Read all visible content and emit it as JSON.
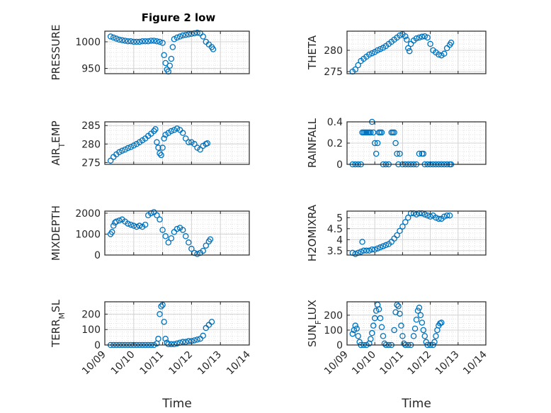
{
  "title": "Figure 2 low",
  "chart_data": [
    {
      "type": "scatter",
      "ylabel": "PRESSURE",
      "xlim": [
        0,
        5
      ],
      "ylim": [
        940,
        1020
      ],
      "yticks": [
        950,
        1000
      ],
      "xticklabels": [],
      "grid": true,
      "points": [
        [
          0.2,
          1010
        ],
        [
          0.3,
          1008
        ],
        [
          0.4,
          1006
        ],
        [
          0.5,
          1004
        ],
        [
          0.6,
          1003
        ],
        [
          0.7,
          1002
        ],
        [
          0.8,
          1001
        ],
        [
          0.9,
          1001
        ],
        [
          1.0,
          1000
        ],
        [
          1.1,
          1000
        ],
        [
          1.2,
          1000
        ],
        [
          1.3,
          1001
        ],
        [
          1.4,
          1001
        ],
        [
          1.5,
          1001
        ],
        [
          1.6,
          1002
        ],
        [
          1.7,
          1002
        ],
        [
          1.8,
          1001
        ],
        [
          1.9,
          1000
        ],
        [
          2.0,
          998
        ],
        [
          2.05,
          975
        ],
        [
          2.1,
          960
        ],
        [
          2.15,
          948
        ],
        [
          2.2,
          944
        ],
        [
          2.25,
          955
        ],
        [
          2.3,
          968
        ],
        [
          2.35,
          990
        ],
        [
          2.4,
          1005
        ],
        [
          2.5,
          1008
        ],
        [
          2.6,
          1010
        ],
        [
          2.7,
          1012
        ],
        [
          2.8,
          1013
        ],
        [
          2.9,
          1014
        ],
        [
          3.0,
          1015
        ],
        [
          3.1,
          1016
        ],
        [
          3.2,
          1017
        ],
        [
          3.3,
          1016
        ],
        [
          3.4,
          1010
        ],
        [
          3.5,
          1000
        ],
        [
          3.6,
          995
        ],
        [
          3.7,
          990
        ],
        [
          3.75,
          986
        ]
      ]
    },
    {
      "type": "scatter",
      "ylabel": "THETA",
      "xlim": [
        0,
        5
      ],
      "ylim": [
        274.5,
        284.5
      ],
      "yticks": [
        275,
        280
      ],
      "xticklabels": [],
      "grid": true,
      "points": [
        [
          0.2,
          275
        ],
        [
          0.3,
          275.5
        ],
        [
          0.4,
          276.5
        ],
        [
          0.5,
          277.5
        ],
        [
          0.6,
          278
        ],
        [
          0.7,
          278.5
        ],
        [
          0.8,
          279
        ],
        [
          0.9,
          279.3
        ],
        [
          1.0,
          279.6
        ],
        [
          1.1,
          280
        ],
        [
          1.2,
          280.3
        ],
        [
          1.3,
          280.6
        ],
        [
          1.4,
          281
        ],
        [
          1.5,
          281.5
        ],
        [
          1.6,
          282
        ],
        [
          1.7,
          282.5
        ],
        [
          1.8,
          283
        ],
        [
          1.9,
          283.5
        ],
        [
          2.0,
          283.8
        ],
        [
          2.1,
          283.3
        ],
        [
          2.15,
          282.5
        ],
        [
          2.2,
          280.5
        ],
        [
          2.25,
          279.8
        ],
        [
          2.3,
          281.5
        ],
        [
          2.4,
          282.3
        ],
        [
          2.5,
          282.8
        ],
        [
          2.6,
          283
        ],
        [
          2.7,
          283.2
        ],
        [
          2.8,
          283.3
        ],
        [
          2.9,
          283
        ],
        [
          3.0,
          281.5
        ],
        [
          3.1,
          280
        ],
        [
          3.2,
          279.5
        ],
        [
          3.3,
          279
        ],
        [
          3.4,
          278.8
        ],
        [
          3.5,
          279.2
        ],
        [
          3.6,
          280.5
        ],
        [
          3.7,
          281.3
        ],
        [
          3.75,
          281.8
        ]
      ]
    },
    {
      "type": "scatter",
      "ylabel": "AIR_TEMP",
      "xlim": [
        0,
        5
      ],
      "ylim": [
        274.5,
        286
      ],
      "yticks": [
        275,
        280,
        285
      ],
      "xticklabels": [],
      "grid": true,
      "points": [
        [
          0.2,
          275.5
        ],
        [
          0.3,
          276.5
        ],
        [
          0.4,
          277.2
        ],
        [
          0.5,
          277.8
        ],
        [
          0.6,
          278.2
        ],
        [
          0.7,
          278.5
        ],
        [
          0.8,
          278.9
        ],
        [
          0.9,
          279.2
        ],
        [
          1.0,
          279.6
        ],
        [
          1.1,
          280
        ],
        [
          1.2,
          280.5
        ],
        [
          1.3,
          281
        ],
        [
          1.4,
          281.5
        ],
        [
          1.5,
          282.2
        ],
        [
          1.6,
          282.8
        ],
        [
          1.7,
          283.5
        ],
        [
          1.75,
          284
        ],
        [
          1.8,
          280.5
        ],
        [
          1.85,
          279
        ],
        [
          1.9,
          277.5
        ],
        [
          1.95,
          277
        ],
        [
          2.0,
          279
        ],
        [
          2.05,
          281.5
        ],
        [
          2.1,
          282.5
        ],
        [
          2.2,
          283
        ],
        [
          2.3,
          283.5
        ],
        [
          2.4,
          283.8
        ],
        [
          2.5,
          284.2
        ],
        [
          2.6,
          283.8
        ],
        [
          2.7,
          283
        ],
        [
          2.8,
          281.5
        ],
        [
          2.9,
          280.5
        ],
        [
          3.0,
          280.5
        ],
        [
          3.1,
          280
        ],
        [
          3.2,
          279
        ],
        [
          3.3,
          278.5
        ],
        [
          3.4,
          279.5
        ],
        [
          3.5,
          280
        ],
        [
          3.55,
          280.2
        ]
      ]
    },
    {
      "type": "scatter",
      "ylabel": "RAINFALL",
      "xlim": [
        0,
        5
      ],
      "ylim": [
        0,
        0.4
      ],
      "yticks": [
        0,
        0.2,
        0.4
      ],
      "ytickfmt": "0.1",
      "xticklabels": [],
      "grid": true,
      "points": [
        [
          0.2,
          0
        ],
        [
          0.3,
          0
        ],
        [
          0.4,
          0
        ],
        [
          0.5,
          0
        ],
        [
          0.55,
          0.3
        ],
        [
          0.6,
          0.3
        ],
        [
          0.65,
          0.3
        ],
        [
          0.7,
          0.3
        ],
        [
          0.75,
          0.3
        ],
        [
          0.8,
          0.3
        ],
        [
          0.85,
          0.3
        ],
        [
          0.9,
          0.4
        ],
        [
          0.95,
          0.3
        ],
        [
          1.0,
          0.2
        ],
        [
          1.05,
          0.1
        ],
        [
          1.1,
          0.2
        ],
        [
          1.15,
          0.3
        ],
        [
          1.2,
          0.3
        ],
        [
          1.25,
          0.3
        ],
        [
          1.3,
          0
        ],
        [
          1.4,
          0
        ],
        [
          1.5,
          0
        ],
        [
          1.6,
          0.3
        ],
        [
          1.65,
          0.3
        ],
        [
          1.7,
          0.3
        ],
        [
          1.75,
          0.2
        ],
        [
          1.8,
          0.1
        ],
        [
          1.85,
          0
        ],
        [
          1.9,
          0.1
        ],
        [
          2.0,
          0
        ],
        [
          2.1,
          0
        ],
        [
          2.2,
          0
        ],
        [
          2.3,
          0
        ],
        [
          2.4,
          0
        ],
        [
          2.5,
          0
        ],
        [
          2.6,
          0.1
        ],
        [
          2.7,
          0.1
        ],
        [
          2.75,
          0.1
        ],
        [
          2.8,
          0
        ],
        [
          2.9,
          0
        ],
        [
          3.0,
          0
        ],
        [
          3.1,
          0
        ],
        [
          3.2,
          0
        ],
        [
          3.3,
          0
        ],
        [
          3.4,
          0
        ],
        [
          3.5,
          0
        ],
        [
          3.6,
          0
        ],
        [
          3.7,
          0
        ],
        [
          3.75,
          0
        ]
      ]
    },
    {
      "type": "scatter",
      "ylabel": "MIXDEPTH",
      "xlim": [
        0,
        5
      ],
      "ylim": [
        0,
        2100
      ],
      "yticks": [
        0,
        1000,
        2000
      ],
      "xticklabels": [],
      "grid": true,
      "points": [
        [
          0.2,
          1000
        ],
        [
          0.25,
          1100
        ],
        [
          0.3,
          1400
        ],
        [
          0.35,
          1550
        ],
        [
          0.4,
          1600
        ],
        [
          0.5,
          1650
        ],
        [
          0.6,
          1700
        ],
        [
          0.7,
          1600
        ],
        [
          0.8,
          1500
        ],
        [
          0.9,
          1450
        ],
        [
          1.0,
          1400
        ],
        [
          1.1,
          1350
        ],
        [
          1.2,
          1400
        ],
        [
          1.3,
          1350
        ],
        [
          1.4,
          1450
        ],
        [
          1.5,
          1900
        ],
        [
          1.6,
          2000
        ],
        [
          1.7,
          2050
        ],
        [
          1.8,
          1900
        ],
        [
          1.9,
          1700
        ],
        [
          2.0,
          1200
        ],
        [
          2.1,
          900
        ],
        [
          2.2,
          600
        ],
        [
          2.3,
          800
        ],
        [
          2.4,
          1100
        ],
        [
          2.5,
          1250
        ],
        [
          2.6,
          1300
        ],
        [
          2.7,
          1200
        ],
        [
          2.8,
          900
        ],
        [
          2.9,
          600
        ],
        [
          3.0,
          300
        ],
        [
          3.1,
          100
        ],
        [
          3.2,
          50
        ],
        [
          3.3,
          100
        ],
        [
          3.4,
          200
        ],
        [
          3.5,
          450
        ],
        [
          3.6,
          650
        ],
        [
          3.65,
          750
        ]
      ]
    },
    {
      "type": "scatter",
      "ylabel": "H2OMIXRA",
      "xlim": [
        0,
        5
      ],
      "ylim": [
        3.3,
        5.3
      ],
      "yticks": [
        3.5,
        4,
        4.5,
        5
      ],
      "xticklabels": [],
      "grid": true,
      "points": [
        [
          0.2,
          3.4
        ],
        [
          0.3,
          3.35
        ],
        [
          0.4,
          3.4
        ],
        [
          0.5,
          3.45
        ],
        [
          0.55,
          3.9
        ],
        [
          0.6,
          3.5
        ],
        [
          0.7,
          3.5
        ],
        [
          0.8,
          3.5
        ],
        [
          0.9,
          3.55
        ],
        [
          1.0,
          3.55
        ],
        [
          1.1,
          3.6
        ],
        [
          1.2,
          3.65
        ],
        [
          1.3,
          3.7
        ],
        [
          1.4,
          3.75
        ],
        [
          1.5,
          3.8
        ],
        [
          1.6,
          3.9
        ],
        [
          1.7,
          4.05
        ],
        [
          1.8,
          4.2
        ],
        [
          1.9,
          4.4
        ],
        [
          2.0,
          4.6
        ],
        [
          2.1,
          4.8
        ],
        [
          2.2,
          5.0
        ],
        [
          2.3,
          5.2
        ],
        [
          2.4,
          5.2
        ],
        [
          2.5,
          5.15
        ],
        [
          2.6,
          5.2
        ],
        [
          2.7,
          5.2
        ],
        [
          2.8,
          5.15
        ],
        [
          2.9,
          5.1
        ],
        [
          3.0,
          5.05
        ],
        [
          3.1,
          5.1
        ],
        [
          3.2,
          5.0
        ],
        [
          3.3,
          4.95
        ],
        [
          3.4,
          4.95
        ],
        [
          3.5,
          5.05
        ],
        [
          3.6,
          5.1
        ],
        [
          3.7,
          5.1
        ]
      ]
    },
    {
      "type": "scatter",
      "ylabel": "TERR_MSL",
      "xlim": [
        0,
        5
      ],
      "ylim": [
        0,
        280
      ],
      "yticks": [
        0,
        100,
        200
      ],
      "xticklabels": [
        "10/09",
        "10/10",
        "10/11",
        "10/12",
        "10/13",
        "10/14"
      ],
      "xlabel": "Time",
      "grid": true,
      "points": [
        [
          0.2,
          0
        ],
        [
          0.3,
          0
        ],
        [
          0.4,
          0
        ],
        [
          0.5,
          0
        ],
        [
          0.6,
          0
        ],
        [
          0.7,
          0
        ],
        [
          0.8,
          0
        ],
        [
          0.9,
          0
        ],
        [
          1.0,
          0
        ],
        [
          1.1,
          0
        ],
        [
          1.2,
          0
        ],
        [
          1.3,
          0
        ],
        [
          1.4,
          0
        ],
        [
          1.5,
          0
        ],
        [
          1.6,
          0
        ],
        [
          1.7,
          0
        ],
        [
          1.8,
          10
        ],
        [
          1.85,
          40
        ],
        [
          1.9,
          200
        ],
        [
          1.95,
          250
        ],
        [
          2.0,
          260
        ],
        [
          2.05,
          150
        ],
        [
          2.1,
          40
        ],
        [
          2.15,
          15
        ],
        [
          2.2,
          5
        ],
        [
          2.3,
          5
        ],
        [
          2.4,
          5
        ],
        [
          2.5,
          10
        ],
        [
          2.6,
          15
        ],
        [
          2.7,
          20
        ],
        [
          2.8,
          20
        ],
        [
          2.9,
          25
        ],
        [
          3.0,
          25
        ],
        [
          3.1,
          30
        ],
        [
          3.2,
          35
        ],
        [
          3.3,
          40
        ],
        [
          3.4,
          60
        ],
        [
          3.5,
          110
        ],
        [
          3.6,
          130
        ],
        [
          3.7,
          150
        ]
      ]
    },
    {
      "type": "scatter",
      "ylabel": "SUN_FLUX",
      "xlim": [
        0,
        5
      ],
      "ylim": [
        0,
        290
      ],
      "yticks": [
        0,
        100,
        200
      ],
      "xticklabels": [
        "10/09",
        "10/10",
        "10/11",
        "10/12",
        "10/13",
        "10/14"
      ],
      "xlabel": "Time",
      "grid": true,
      "points": [
        [
          0.2,
          75
        ],
        [
          0.25,
          100
        ],
        [
          0.3,
          130
        ],
        [
          0.35,
          110
        ],
        [
          0.4,
          60
        ],
        [
          0.45,
          20
        ],
        [
          0.5,
          0
        ],
        [
          0.6,
          0
        ],
        [
          0.7,
          0
        ],
        [
          0.8,
          10
        ],
        [
          0.85,
          40
        ],
        [
          0.9,
          80
        ],
        [
          0.95,
          130
        ],
        [
          1.0,
          180
        ],
        [
          1.05,
          230
        ],
        [
          1.1,
          270
        ],
        [
          1.15,
          240
        ],
        [
          1.2,
          180
        ],
        [
          1.25,
          120
        ],
        [
          1.3,
          60
        ],
        [
          1.35,
          10
        ],
        [
          1.4,
          0
        ],
        [
          1.5,
          0
        ],
        [
          1.6,
          0
        ],
        [
          1.7,
          100
        ],
        [
          1.75,
          220
        ],
        [
          1.8,
          270
        ],
        [
          1.85,
          260
        ],
        [
          1.9,
          210
        ],
        [
          1.95,
          130
        ],
        [
          2.0,
          60
        ],
        [
          2.05,
          10
        ],
        [
          2.1,
          0
        ],
        [
          2.2,
          0
        ],
        [
          2.3,
          0
        ],
        [
          2.4,
          60
        ],
        [
          2.45,
          110
        ],
        [
          2.5,
          170
        ],
        [
          2.55,
          230
        ],
        [
          2.6,
          250
        ],
        [
          2.65,
          200
        ],
        [
          2.7,
          150
        ],
        [
          2.75,
          100
        ],
        [
          2.8,
          60
        ],
        [
          2.85,
          20
        ],
        [
          2.9,
          0
        ],
        [
          3.0,
          0
        ],
        [
          3.1,
          0
        ],
        [
          3.15,
          20
        ],
        [
          3.2,
          60
        ],
        [
          3.25,
          100
        ],
        [
          3.3,
          130
        ],
        [
          3.35,
          145
        ],
        [
          3.4,
          150
        ]
      ]
    }
  ]
}
